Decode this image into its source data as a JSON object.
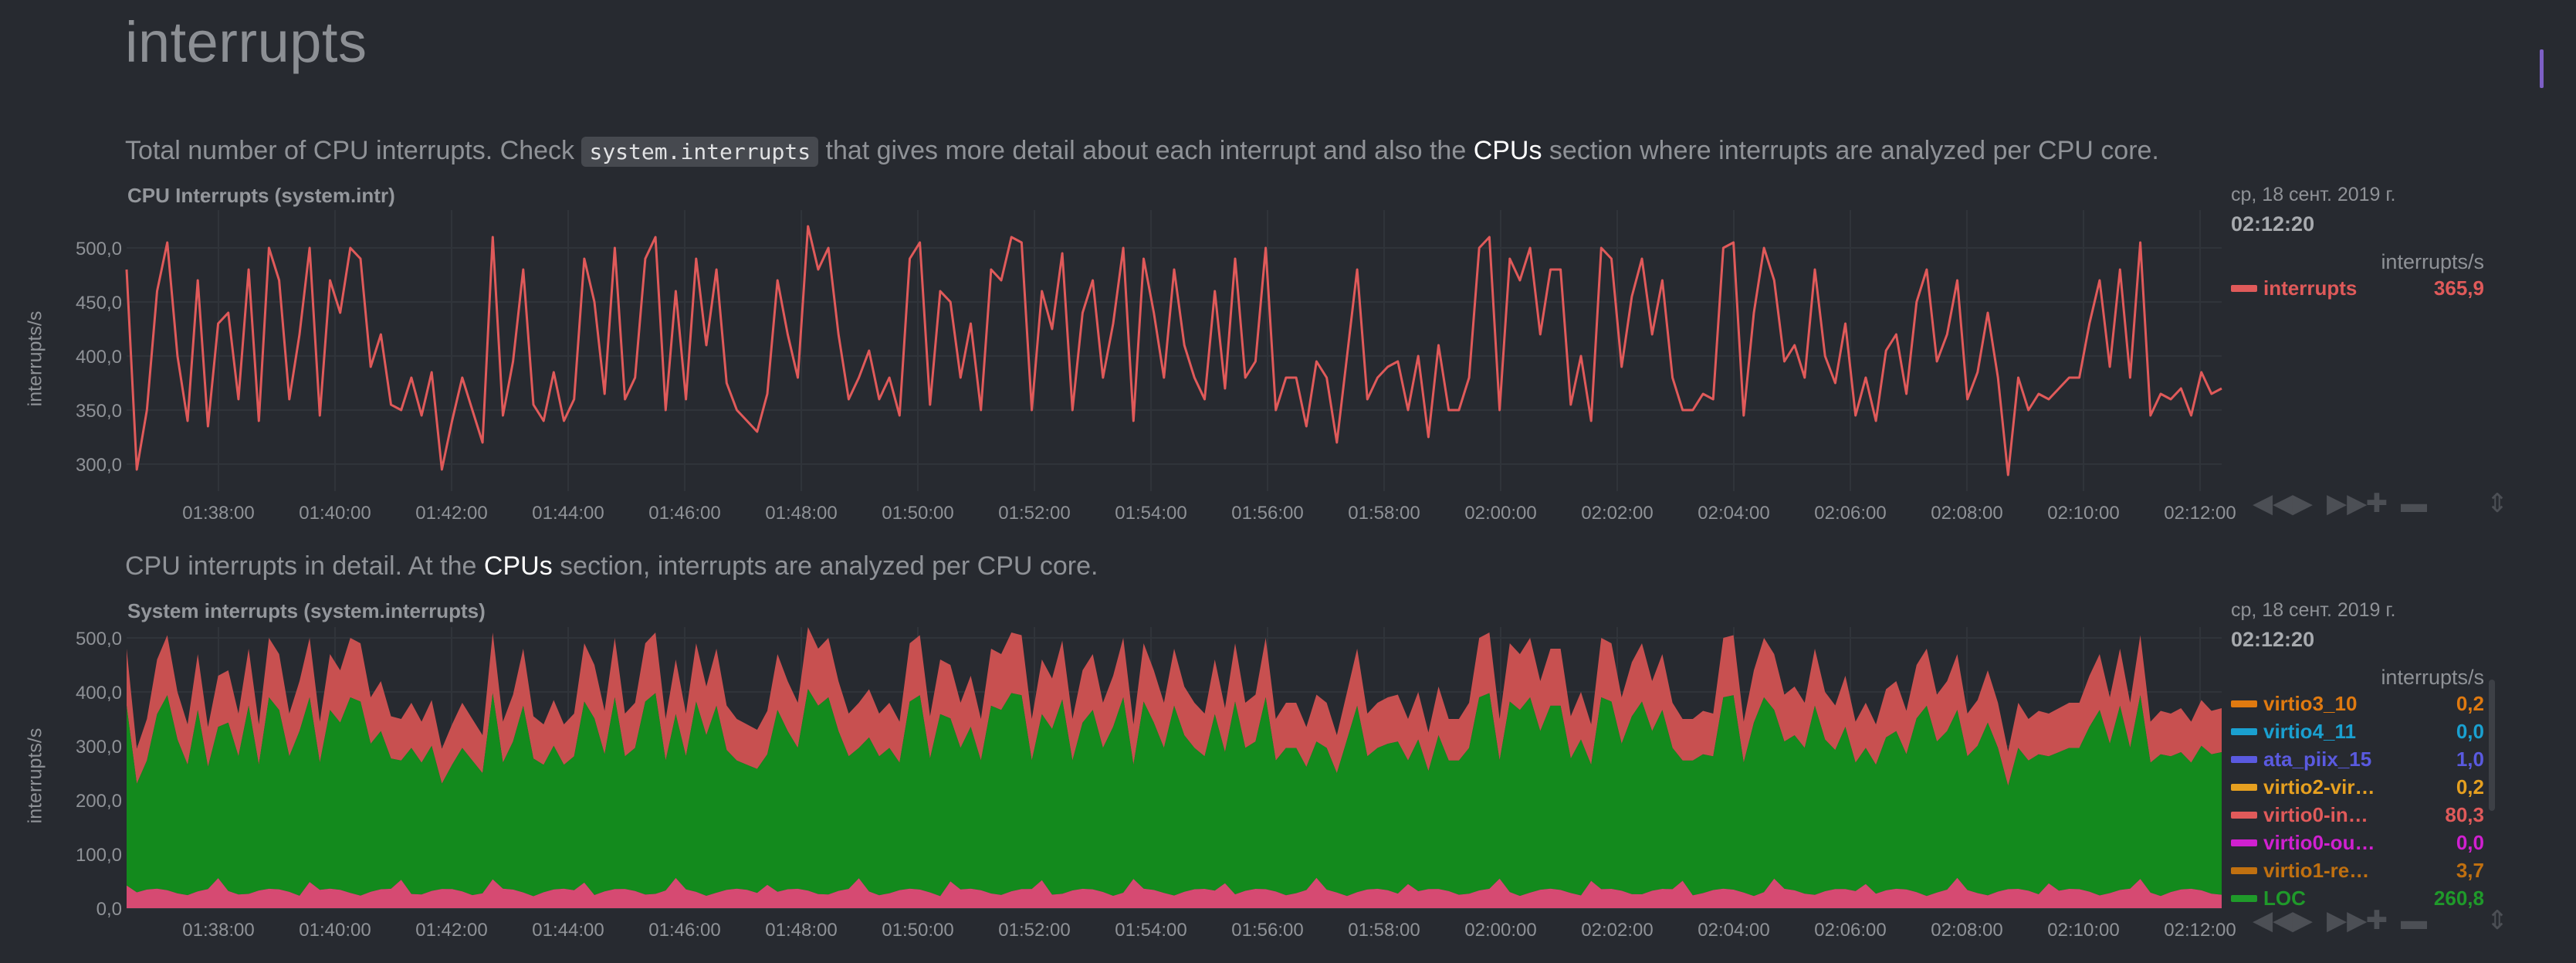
{
  "page": {
    "title": "interrupts",
    "desc1": {
      "pre": "Total number of CPU interrupts. Check ",
      "code": "system.interrupts",
      "mid": " that gives more detail about each interrupt and also the ",
      "link": "CPUs",
      "post": " section where interrupts are analyzed per CPU core."
    },
    "desc2": {
      "pre": "CPU interrupts in detail. At the ",
      "link": "CPUs",
      "post": " section, interrupts are analyzed per CPU core."
    }
  },
  "toolbar": {
    "rewind_icon": "rewind-icon",
    "play_icon": "play-icon",
    "forward_icon": "fast-forward-icon",
    "zoom_in_icon": "zoom-in-icon",
    "zoom_out_icon": "zoom-out-icon",
    "resize_icon": "resize-icon"
  },
  "chart_data": [
    {
      "type": "line",
      "title": "CPU Interrupts (system.intr)",
      "ylabel": "interrupts/s",
      "ylim": [
        275,
        535
      ],
      "yticks": [
        "500,0",
        "450,0",
        "400,0",
        "350,0",
        "300,0"
      ],
      "xticks": [
        "01:38:00",
        "01:40:00",
        "01:42:00",
        "01:44:00",
        "01:46:00",
        "01:48:00",
        "01:50:00",
        "01:52:00",
        "01:54:00",
        "01:56:00",
        "01:58:00",
        "02:00:00",
        "02:02:00",
        "02:04:00",
        "02:06:00",
        "02:08:00",
        "02:10:00",
        "02:12:00"
      ],
      "legend": {
        "date": "ср, 18 сент. 2019 г.",
        "time": "02:12:20",
        "units": "interrupts/s",
        "series": [
          {
            "name": "interrupts",
            "value": "365,9",
            "color": "#e05a5a"
          }
        ]
      },
      "series_color": "#e05a5a",
      "values": [
        480,
        295,
        350,
        460,
        505,
        400,
        340,
        470,
        335,
        430,
        440,
        360,
        480,
        340,
        500,
        470,
        360,
        420,
        500,
        345,
        470,
        440,
        500,
        490,
        390,
        420,
        355,
        350,
        380,
        345,
        385,
        295,
        340,
        380,
        350,
        320,
        510,
        345,
        395,
        480,
        355,
        340,
        385,
        340,
        360,
        490,
        450,
        365,
        500,
        360,
        380,
        490,
        510,
        350,
        460,
        360,
        490,
        410,
        480,
        375,
        350,
        340,
        330,
        365,
        470,
        420,
        380,
        520,
        480,
        500,
        420,
        360,
        380,
        405,
        360,
        380,
        345,
        490,
        505,
        355,
        460,
        450,
        380,
        430,
        350,
        480,
        470,
        510,
        505,
        350,
        460,
        425,
        495,
        350,
        440,
        470,
        380,
        430,
        500,
        340,
        490,
        440,
        380,
        480,
        410,
        380,
        360,
        460,
        370,
        490,
        380,
        395,
        500,
        350,
        380,
        380,
        335,
        395,
        380,
        320,
        400,
        480,
        360,
        380,
        390,
        395,
        350,
        400,
        325,
        410,
        350,
        350,
        380,
        500,
        510,
        350,
        490,
        470,
        500,
        420,
        480,
        480,
        355,
        400,
        340,
        500,
        490,
        390,
        455,
        490,
        420,
        470,
        380,
        350,
        350,
        365,
        360,
        500,
        505,
        345,
        440,
        500,
        470,
        395,
        410,
        380,
        480,
        400,
        375,
        430,
        345,
        380,
        340,
        405,
        420,
        365,
        450,
        480,
        395,
        420,
        470,
        360,
        385,
        440,
        380,
        290,
        380,
        350,
        365,
        360,
        370,
        380,
        380,
        430,
        470,
        390,
        480,
        380,
        505,
        345,
        365,
        360,
        370,
        345,
        385,
        365,
        370
      ]
    },
    {
      "type": "area",
      "stacked": true,
      "title": "System interrupts (system.interrupts)",
      "ylabel": "interrupts/s",
      "ylim": [
        0,
        520
      ],
      "yticks": [
        "500,0",
        "400,0",
        "300,0",
        "200,0",
        "100,0",
        "0,0"
      ],
      "xticks": [
        "01:38:00",
        "01:40:00",
        "01:42:00",
        "01:44:00",
        "01:46:00",
        "01:48:00",
        "01:50:00",
        "01:52:00",
        "01:54:00",
        "01:56:00",
        "01:58:00",
        "02:00:00",
        "02:02:00",
        "02:04:00",
        "02:06:00",
        "02:08:00",
        "02:10:00",
        "02:12:00"
      ],
      "legend": {
        "date": "ср, 18 сент. 2019 г.",
        "time": "02:12:20",
        "units": "interrupts/s",
        "series": [
          {
            "name": "virtio3_10",
            "value": "0,2",
            "color": "#e07a10"
          },
          {
            "name": "virtio4_11",
            "value": "0,0",
            "color": "#1aa0d0"
          },
          {
            "name": "ata_piix_15",
            "value": "1,0",
            "color": "#5a5ae0"
          },
          {
            "name": "virtio2-vir…",
            "value": "0,2",
            "color": "#e6a020"
          },
          {
            "name": "virtio0-in…",
            "value": "80,3",
            "color": "#e05a5a"
          },
          {
            "name": "virtio0-ou…",
            "value": "0,0",
            "color": "#d020d0"
          },
          {
            "name": "virtio1-re…",
            "value": "3,7",
            "color": "#c07010"
          },
          {
            "name": "LOC",
            "value": "260,8",
            "color": "#1f9a2a"
          }
        ]
      },
      "area_colors": {
        "pink": "#d64a72",
        "green": "#138a1d",
        "red": "#c85050"
      }
    }
  ]
}
